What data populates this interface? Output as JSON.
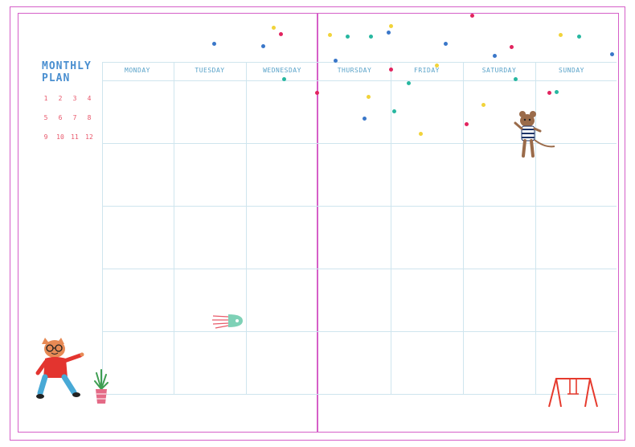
{
  "title": "MONTHLY\nPLAN",
  "months": [
    "1",
    "2",
    "3",
    "4",
    "5",
    "6",
    "7",
    "8",
    "9",
    "10",
    "11",
    "12"
  ],
  "days": [
    "MONDAY",
    "TUESDAY",
    "WEDNESDAY",
    "THURSDAY",
    "FRIDAY",
    "SATURDAY",
    "SUNDAY"
  ],
  "colors": {
    "frame": "#d55fc8",
    "grid": "#cfe5ee",
    "title": "#4a8fd0",
    "months": "#e8566a",
    "days": "#5aa3c9"
  },
  "illustrations": [
    "cat-character",
    "plant-pot",
    "jellyfish",
    "mouse-character",
    "swing-set",
    "confetti-dots"
  ]
}
